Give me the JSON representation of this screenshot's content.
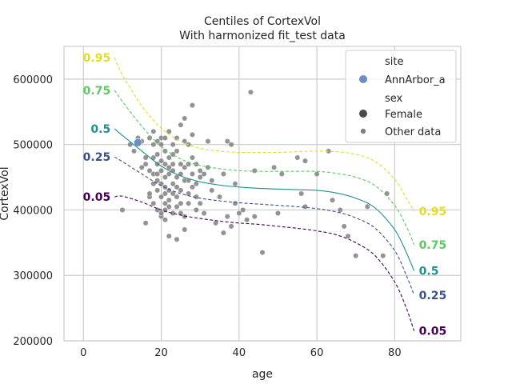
{
  "chart_data": {
    "type": "scatter",
    "title": "Centiles of CortexVol",
    "subtitle": "With harmonized fit_test data",
    "xlabel": "age",
    "ylabel": "CortexVol",
    "xlim": [
      -5,
      97
    ],
    "ylim": [
      200000,
      650000
    ],
    "x_ticks": [
      0,
      20,
      40,
      60,
      80
    ],
    "y_ticks": [
      200000,
      300000,
      400000,
      500000,
      600000
    ],
    "x_tick_labels": [
      "0",
      "20",
      "40",
      "60",
      "80"
    ],
    "y_tick_labels": [
      "200000",
      "300000",
      "400000",
      "500000",
      "600000"
    ],
    "grid": true,
    "legend_position": "top-right",
    "legend": {
      "site_header": "site",
      "site_entry": "AnnArbor_a",
      "sex_header": "sex",
      "sex_entry": "Female",
      "other_entry": "Other data"
    },
    "colors": {
      "0.05": "#440154",
      "0.25": "#3b528b",
      "0.5": "#21918c",
      "0.75": "#5ec962",
      "0.95": "#e1df23",
      "annarbor": "#6a8dc2",
      "female": "#4a4a4a",
      "other": "#808080"
    },
    "centiles": [
      {
        "name": "0.05",
        "label": "0.05",
        "dashed": true,
        "x": [
          8,
          10,
          15,
          20,
          25,
          30,
          35,
          40,
          45,
          50,
          55,
          60,
          65,
          70,
          75,
          80,
          83,
          85
        ],
        "y": [
          420000,
          421000,
          412000,
          400000,
          392000,
          387000,
          383000,
          380000,
          378000,
          375000,
          372000,
          368000,
          362000,
          350000,
          330000,
          290000,
          250000,
          215000
        ]
      },
      {
        "name": "0.25",
        "label": "0.25",
        "dashed": true,
        "x": [
          8,
          10,
          15,
          20,
          25,
          30,
          35,
          40,
          45,
          50,
          55,
          60,
          65,
          70,
          75,
          80,
          83,
          85
        ],
        "y": [
          481000,
          474000,
          455000,
          437000,
          425000,
          418000,
          414000,
          411000,
          409000,
          407000,
          405000,
          402000,
          397000,
          388000,
          372000,
          338000,
          300000,
          270000
        ]
      },
      {
        "name": "0.5",
        "label": "0.5",
        "dashed": false,
        "x": [
          8,
          10,
          15,
          20,
          25,
          30,
          35,
          40,
          45,
          50,
          55,
          60,
          65,
          70,
          75,
          80,
          83,
          85
        ],
        "y": [
          524000,
          514000,
          490000,
          467000,
          452000,
          443000,
          438000,
          435000,
          433000,
          432000,
          431000,
          430000,
          426000,
          418000,
          403000,
          370000,
          335000,
          307000
        ]
      },
      {
        "name": "0.75",
        "label": "0.75",
        "dashed": true,
        "x": [
          8,
          10,
          15,
          20,
          25,
          30,
          35,
          40,
          45,
          50,
          55,
          60,
          65,
          70,
          75,
          80,
          83,
          85
        ],
        "y": [
          583000,
          566000,
          528000,
          497000,
          478000,
          468000,
          463000,
          460000,
          459000,
          459000,
          459000,
          459000,
          456000,
          450000,
          437000,
          407000,
          375000,
          347000
        ]
      },
      {
        "name": "0.95",
        "label": "0.95",
        "dashed": true,
        "x": [
          8,
          10,
          15,
          20,
          25,
          30,
          35,
          40,
          45,
          50,
          55,
          60,
          65,
          70,
          75,
          80,
          83,
          85
        ],
        "y": [
          633000,
          607000,
          559000,
          525000,
          505000,
          494000,
          490000,
          488000,
          488000,
          488000,
          489000,
          490000,
          489000,
          485000,
          474000,
          447000,
          418000,
          398000
        ]
      }
    ],
    "points_annarbor": [
      {
        "x": 14,
        "y": 503000
      }
    ],
    "points_other": [
      [
        10,
        400000
      ],
      [
        12,
        500000
      ],
      [
        13,
        490000
      ],
      [
        14,
        510000
      ],
      [
        15,
        505000
      ],
      [
        16,
        480000
      ],
      [
        16,
        380000
      ],
      [
        16,
        470000
      ],
      [
        17,
        510000
      ],
      [
        17,
        460000
      ],
      [
        17,
        420000
      ],
      [
        18,
        500000
      ],
      [
        18,
        455000
      ],
      [
        18,
        440000
      ],
      [
        18,
        410000
      ],
      [
        18,
        520000
      ],
      [
        19,
        505000
      ],
      [
        19,
        470000
      ],
      [
        19,
        430000
      ],
      [
        19,
        400000
      ],
      [
        19,
        485000
      ],
      [
        20,
        500000
      ],
      [
        20,
        460000
      ],
      [
        20,
        440000
      ],
      [
        20,
        420000
      ],
      [
        20,
        390000
      ],
      [
        20,
        510000
      ],
      [
        21,
        490000
      ],
      [
        21,
        470000
      ],
      [
        21,
        450000
      ],
      [
        21,
        425000
      ],
      [
        21,
        400000
      ],
      [
        21,
        410000
      ],
      [
        22,
        520000
      ],
      [
        22,
        480000
      ],
      [
        22,
        455000
      ],
      [
        22,
        430000
      ],
      [
        22,
        360000
      ],
      [
        22,
        405000
      ],
      [
        23,
        500000
      ],
      [
        23,
        460000
      ],
      [
        23,
        440000
      ],
      [
        23,
        395000
      ],
      [
        23,
        470000
      ],
      [
        24,
        490000
      ],
      [
        24,
        450000
      ],
      [
        24,
        420000
      ],
      [
        24,
        355000
      ],
      [
        25,
        530000
      ],
      [
        25,
        470000
      ],
      [
        25,
        430000
      ],
      [
        25,
        410000
      ],
      [
        26,
        540000
      ],
      [
        26,
        505000
      ],
      [
        26,
        465000
      ],
      [
        26,
        390000
      ],
      [
        26,
        370000
      ],
      [
        27,
        500000
      ],
      [
        27,
        445000
      ],
      [
        27,
        425000
      ],
      [
        28,
        560000
      ],
      [
        28,
        515000
      ],
      [
        28,
        480000
      ],
      [
        28,
        455000
      ],
      [
        29,
        470000
      ],
      [
        29,
        440000
      ],
      [
        29,
        400000
      ],
      [
        30,
        460000
      ],
      [
        30,
        410000
      ],
      [
        31,
        455000
      ],
      [
        31,
        395000
      ],
      [
        32,
        505000
      ],
      [
        32,
        465000
      ],
      [
        33,
        430000
      ],
      [
        34,
        380000
      ],
      [
        35,
        420000
      ],
      [
        36,
        365000
      ],
      [
        37,
        505000
      ],
      [
        37,
        390000
      ],
      [
        38,
        500000
      ],
      [
        38,
        375000
      ],
      [
        39,
        410000
      ],
      [
        40,
        395000
      ],
      [
        41,
        400000
      ],
      [
        42,
        385000
      ],
      [
        43,
        580000
      ],
      [
        44,
        460000
      ],
      [
        44,
        390000
      ],
      [
        46,
        335000
      ],
      [
        49,
        465000
      ],
      [
        50,
        395000
      ],
      [
        51,
        455000
      ],
      [
        55,
        480000
      ],
      [
        56,
        425000
      ],
      [
        57,
        475000
      ],
      [
        57,
        405000
      ],
      [
        60,
        455000
      ],
      [
        63,
        490000
      ],
      [
        64,
        415000
      ],
      [
        66,
        400000
      ],
      [
        67,
        375000
      ],
      [
        68,
        360000
      ],
      [
        70,
        330000
      ],
      [
        73,
        405000
      ],
      [
        77,
        330000
      ],
      [
        78,
        425000
      ],
      [
        18,
        480000
      ],
      [
        19,
        445000
      ],
      [
        20,
        475000
      ],
      [
        21,
        435000
      ],
      [
        22,
        415000
      ],
      [
        23,
        485000
      ],
      [
        24,
        435000
      ],
      [
        25,
        455000
      ],
      [
        20,
        395000
      ],
      [
        21,
        385000
      ],
      [
        22,
        465000
      ],
      [
        23,
        425000
      ],
      [
        24,
        405000
      ],
      [
        25,
        395000
      ],
      [
        26,
        445000
      ],
      [
        27,
        410000
      ],
      [
        28,
        435000
      ],
      [
        29,
        420000
      ],
      [
        30,
        450000
      ],
      [
        27,
        470000
      ],
      [
        24,
        510000
      ],
      [
        21,
        510000
      ],
      [
        19,
        455000
      ],
      [
        15,
        465000
      ],
      [
        17,
        425000
      ],
      [
        36,
        455000
      ],
      [
        39,
        440000
      ],
      [
        33,
        445000
      ]
    ]
  }
}
